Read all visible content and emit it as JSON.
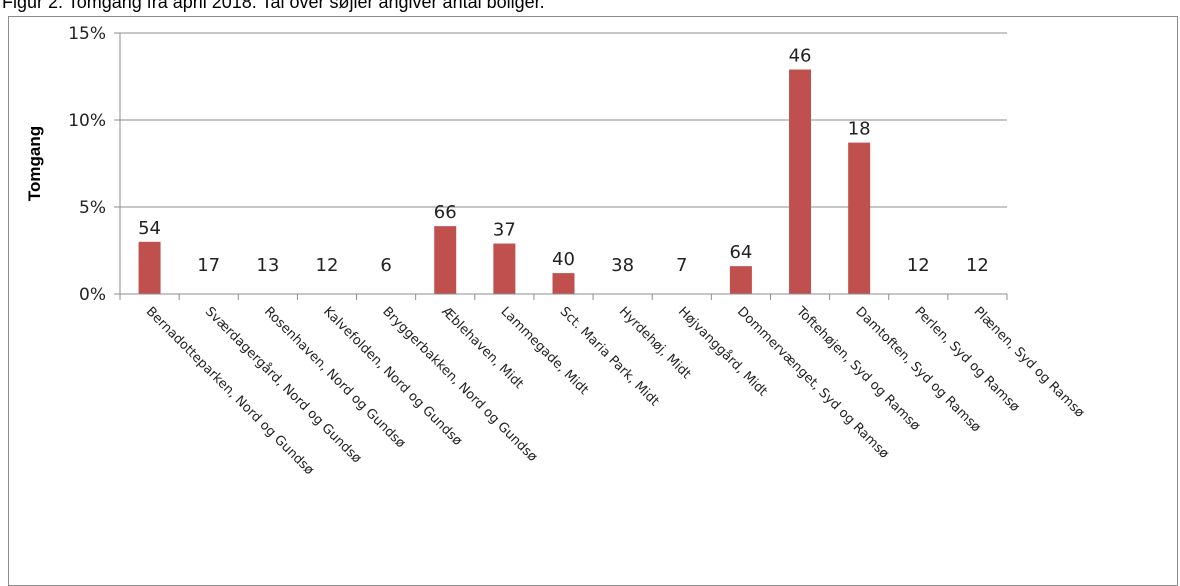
{
  "caption": "Figur 2. Tomgang fra april 2018. Tal over søjler angiver antal boliger.",
  "chart_data": {
    "type": "bar",
    "ylabel": "Tomgang",
    "ylim": [
      0,
      15
    ],
    "yticks": [
      "0%",
      "5%",
      "10%",
      "15%"
    ],
    "ytick_values": [
      0,
      5,
      10,
      15
    ],
    "grid": true,
    "bar_color": "#c0504d",
    "categories": [
      "Bernadotteparken, Nord og Gundsø",
      "Sværdagergård, Nord og Gundsø",
      "Rosenhaven, Nord og Gundsø",
      "Kalvefolden, Nord og Gundsø",
      "Bryggerbakken, Nord og Gundsø",
      "Æblehaven, Midt",
      "Lammegade, Midt",
      "Sct. Maria Park, Midt",
      "Hyrdehøj, Midt",
      "Højvanggård, Midt",
      "Dommervænget, Syd og Ramsø",
      "Toftehøjen, Syd og Ramsø",
      "Damtoften, Syd og Ramsø",
      "Perlen, Syd og Ramsø",
      "Plænen, Syd og Ramsø"
    ],
    "values": [
      3.0,
      0,
      0,
      0,
      0,
      3.9,
      2.9,
      1.2,
      0,
      0,
      1.6,
      12.9,
      8.7,
      0,
      0
    ],
    "data_labels": [
      "54",
      "17",
      "13",
      "12",
      "6",
      "66",
      "37",
      "40",
      "38",
      "7",
      "64",
      "46",
      "18",
      "12",
      "12"
    ]
  }
}
